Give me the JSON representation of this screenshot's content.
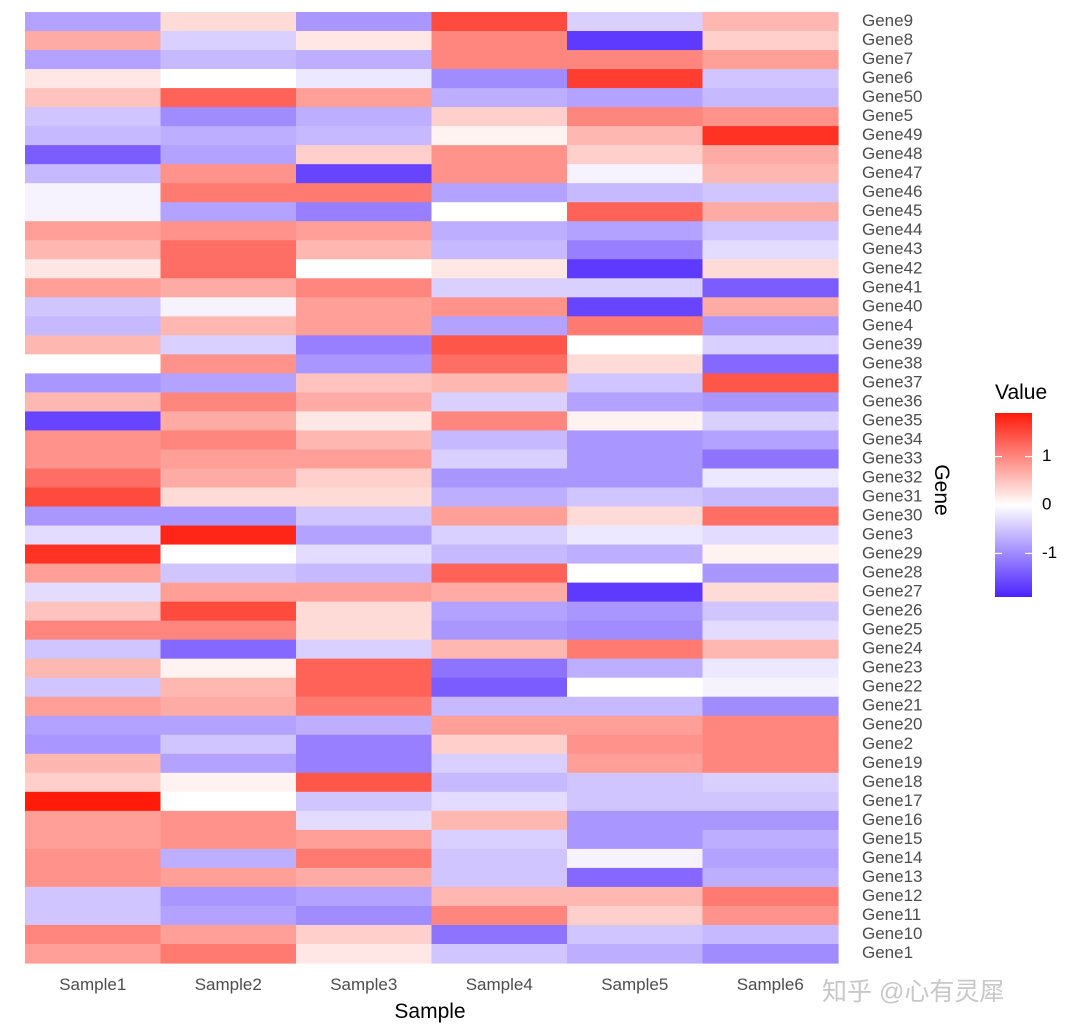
{
  "chart_data": {
    "type": "heatmap",
    "title": "",
    "xlabel": "Sample",
    "ylabel": "Gene",
    "samples": [
      "Sample1",
      "Sample2",
      "Sample3",
      "Sample4",
      "Sample5",
      "Sample6"
    ],
    "genes": [
      "Gene9",
      "Gene8",
      "Gene7",
      "Gene6",
      "Gene50",
      "Gene5",
      "Gene49",
      "Gene48",
      "Gene47",
      "Gene46",
      "Gene45",
      "Gene44",
      "Gene43",
      "Gene42",
      "Gene41",
      "Gene40",
      "Gene4",
      "Gene39",
      "Gene38",
      "Gene37",
      "Gene36",
      "Gene35",
      "Gene34",
      "Gene33",
      "Gene32",
      "Gene31",
      "Gene30",
      "Gene3",
      "Gene29",
      "Gene28",
      "Gene27",
      "Gene26",
      "Gene25",
      "Gene24",
      "Gene23",
      "Gene22",
      "Gene21",
      "Gene20",
      "Gene2",
      "Gene19",
      "Gene18",
      "Gene17",
      "Gene16",
      "Gene15",
      "Gene14",
      "Gene13",
      "Gene12",
      "Gene11",
      "Gene10",
      "Gene1"
    ],
    "values": [
      [
        -0.8,
        0.3,
        -0.9,
        1.5,
        -0.4,
        0.6
      ],
      [
        0.7,
        -0.4,
        0.2,
        1.0,
        -1.7,
        0.4
      ],
      [
        -0.8,
        -0.6,
        -0.7,
        1.0,
        1.0,
        0.8
      ],
      [
        0.2,
        0.0,
        -0.2,
        -1.0,
        1.6,
        -0.5
      ],
      [
        0.5,
        1.3,
        0.8,
        -0.7,
        -0.8,
        -0.6
      ],
      [
        -0.5,
        -1.0,
        -0.7,
        0.4,
        1.0,
        0.9
      ],
      [
        -0.6,
        -0.7,
        -0.6,
        0.1,
        0.6,
        1.7
      ],
      [
        -1.4,
        -0.8,
        0.4,
        0.9,
        0.4,
        0.7
      ],
      [
        -0.6,
        0.9,
        -1.6,
        0.9,
        -0.1,
        0.6
      ],
      [
        -0.1,
        1.1,
        1.1,
        -0.8,
        -0.6,
        -0.5
      ],
      [
        -0.1,
        -0.8,
        -1.1,
        0.0,
        1.3,
        0.7
      ],
      [
        0.8,
        0.9,
        0.8,
        -0.7,
        -0.8,
        -0.5
      ],
      [
        0.6,
        1.2,
        0.6,
        -0.6,
        -1.1,
        -0.3
      ],
      [
        0.2,
        1.2,
        0.0,
        0.2,
        -1.7,
        0.3
      ],
      [
        0.8,
        0.7,
        1.0,
        -0.4,
        -0.4,
        -1.4
      ],
      [
        -0.5,
        -0.1,
        0.8,
        0.9,
        -1.6,
        0.7
      ],
      [
        -0.6,
        0.6,
        0.8,
        -0.8,
        1.1,
        -0.9
      ],
      [
        0.6,
        -0.4,
        -1.1,
        1.4,
        0.0,
        -0.4
      ],
      [
        0.0,
        0.9,
        -0.9,
        1.2,
        0.3,
        -1.3
      ],
      [
        -0.9,
        -0.8,
        0.5,
        0.6,
        -0.5,
        1.4
      ],
      [
        0.6,
        1.0,
        0.7,
        -0.4,
        -0.8,
        -0.9
      ],
      [
        -1.6,
        0.7,
        0.2,
        1.0,
        0.1,
        -0.4
      ],
      [
        0.9,
        1.0,
        0.6,
        -0.6,
        -0.9,
        -0.8
      ],
      [
        0.9,
        0.8,
        0.8,
        -0.4,
        -0.9,
        -1.2
      ],
      [
        1.2,
        0.7,
        0.4,
        -0.9,
        -0.9,
        -0.2
      ],
      [
        1.5,
        0.3,
        0.3,
        -0.7,
        -0.5,
        -0.6
      ],
      [
        -0.9,
        -0.9,
        -0.5,
        0.8,
        0.3,
        1.2
      ],
      [
        -0.3,
        1.8,
        -0.8,
        -0.4,
        -0.2,
        -0.3
      ],
      [
        1.7,
        0.0,
        -0.3,
        -0.6,
        -0.7,
        0.1
      ],
      [
        0.8,
        -0.5,
        -0.6,
        1.3,
        0.0,
        -0.9
      ],
      [
        -0.3,
        0.8,
        0.8,
        0.7,
        -1.7,
        0.3
      ],
      [
        0.5,
        1.5,
        0.3,
        -0.8,
        -0.9,
        -0.5
      ],
      [
        1.0,
        1.0,
        0.3,
        -0.9,
        -1.0,
        -0.3
      ],
      [
        -0.5,
        -1.3,
        -0.4,
        0.6,
        1.1,
        0.6
      ],
      [
        0.6,
        0.1,
        1.3,
        -1.2,
        -0.7,
        -0.2
      ],
      [
        -0.5,
        0.6,
        1.3,
        -1.4,
        0.0,
        -0.1
      ],
      [
        0.8,
        0.7,
        1.1,
        -0.6,
        -0.6,
        -1.0
      ],
      [
        -0.8,
        -0.8,
        -0.7,
        0.8,
        0.8,
        1.0
      ],
      [
        -0.9,
        -0.5,
        -1.1,
        0.4,
        0.9,
        1.0
      ],
      [
        0.6,
        -0.8,
        -1.1,
        -0.4,
        0.8,
        1.0
      ],
      [
        0.4,
        0.1,
        1.4,
        -0.6,
        -0.5,
        -0.4
      ],
      [
        1.9,
        0.0,
        -0.5,
        -0.3,
        -0.5,
        -0.5
      ],
      [
        0.8,
        0.9,
        -0.3,
        0.6,
        -0.9,
        -0.9
      ],
      [
        0.8,
        0.9,
        0.8,
        -0.4,
        -0.9,
        -0.7
      ],
      [
        0.9,
        -0.7,
        1.1,
        -0.5,
        -0.1,
        -0.8
      ],
      [
        0.9,
        0.8,
        0.7,
        -0.5,
        -1.3,
        -0.7
      ],
      [
        -0.5,
        -0.9,
        -0.8,
        0.6,
        0.6,
        1.1
      ],
      [
        -0.5,
        -0.8,
        -1.0,
        1.0,
        0.4,
        0.9
      ],
      [
        1.0,
        0.8,
        0.4,
        -1.2,
        -0.5,
        -0.6
      ],
      [
        0.8,
        1.1,
        0.2,
        -0.5,
        -0.7,
        -1.0
      ]
    ],
    "legend": {
      "title": "Value",
      "ticks": [
        1,
        0,
        -1
      ],
      "tick_labels": [
        "1",
        "0",
        "-1"
      ],
      "range": [
        -1.9,
        1.9
      ],
      "low_color": "#4b22ff",
      "mid_color": "#ffffff",
      "high_color": "#ff1a0a",
      "placement": "right"
    },
    "ylabel_position": "right"
  },
  "watermark": {
    "text": "知乎 @心有灵犀"
  }
}
